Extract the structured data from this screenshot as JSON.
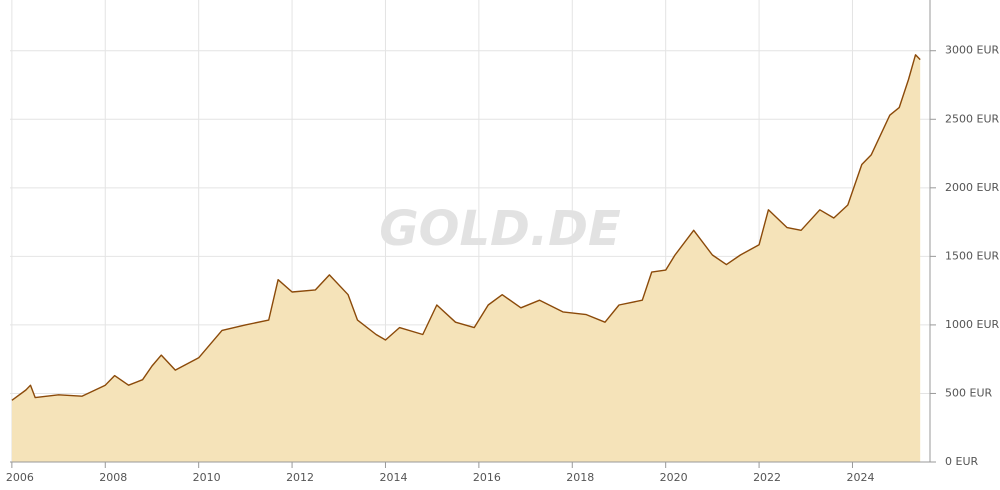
{
  "chart_data": {
    "type": "area",
    "watermark": "GOLD.DE",
    "x": [
      2006.0,
      2006.3,
      2006.4,
      2006.5,
      2007.0,
      2007.5,
      2008.0,
      2008.2,
      2008.5,
      2008.8,
      2009.0,
      2009.2,
      2009.5,
      2010.0,
      2010.5,
      2011.0,
      2011.5,
      2011.7,
      2012.0,
      2012.5,
      2012.8,
      2013.2,
      2013.4,
      2013.8,
      2014.0,
      2014.3,
      2014.8,
      2015.1,
      2015.5,
      2015.9,
      2016.2,
      2016.5,
      2016.9,
      2017.3,
      2017.8,
      2018.3,
      2018.7,
      2019.0,
      2019.5,
      2019.7,
      2020.0,
      2020.2,
      2020.6,
      2021.0,
      2021.3,
      2021.6,
      2022.0,
      2022.2,
      2022.6,
      2022.9,
      2023.3,
      2023.6,
      2023.9,
      2024.2,
      2024.4,
      2024.8,
      2025.0,
      2025.2,
      2025.35,
      2025.45
    ],
    "series": [
      {
        "color": "#8b4a0a",
        "fill": "#f5e3b9",
        "values": [
          450,
          525,
          560,
          470,
          490,
          480,
          560,
          630,
          560,
          600,
          700,
          780,
          670,
          760,
          960,
          1000,
          1035,
          1330,
          1240,
          1255,
          1365,
          1220,
          1035,
          930,
          890,
          980,
          930,
          1145,
          1020,
          980,
          1145,
          1220,
          1125,
          1180,
          1095,
          1075,
          1020,
          1145,
          1180,
          1385,
          1400,
          1510,
          1690,
          1510,
          1440,
          1510,
          1585,
          1840,
          1710,
          1690,
          1840,
          1780,
          1875,
          2170,
          2240,
          2530,
          2585,
          2790,
          2970,
          2935
        ]
      }
    ],
    "xlim": [
      2005.96,
      2025.66
    ],
    "xticks": [
      2006,
      2008,
      2010,
      2012,
      2014,
      2016,
      2018,
      2020,
      2022,
      2024
    ],
    "ylim": [
      0,
      3370
    ],
    "yticks": [
      {
        "value": 0,
        "label": "0 EUR"
      },
      {
        "value": 500,
        "label": "500 EUR"
      },
      {
        "value": 1000,
        "label": "1000 EUR"
      },
      {
        "value": 1500,
        "label": "1500 EUR"
      },
      {
        "value": 2000,
        "label": "2000 EUR"
      },
      {
        "value": 2500,
        "label": "2500 EUR"
      },
      {
        "value": 3000,
        "label": "3000 EUR"
      }
    ],
    "grid": true
  }
}
